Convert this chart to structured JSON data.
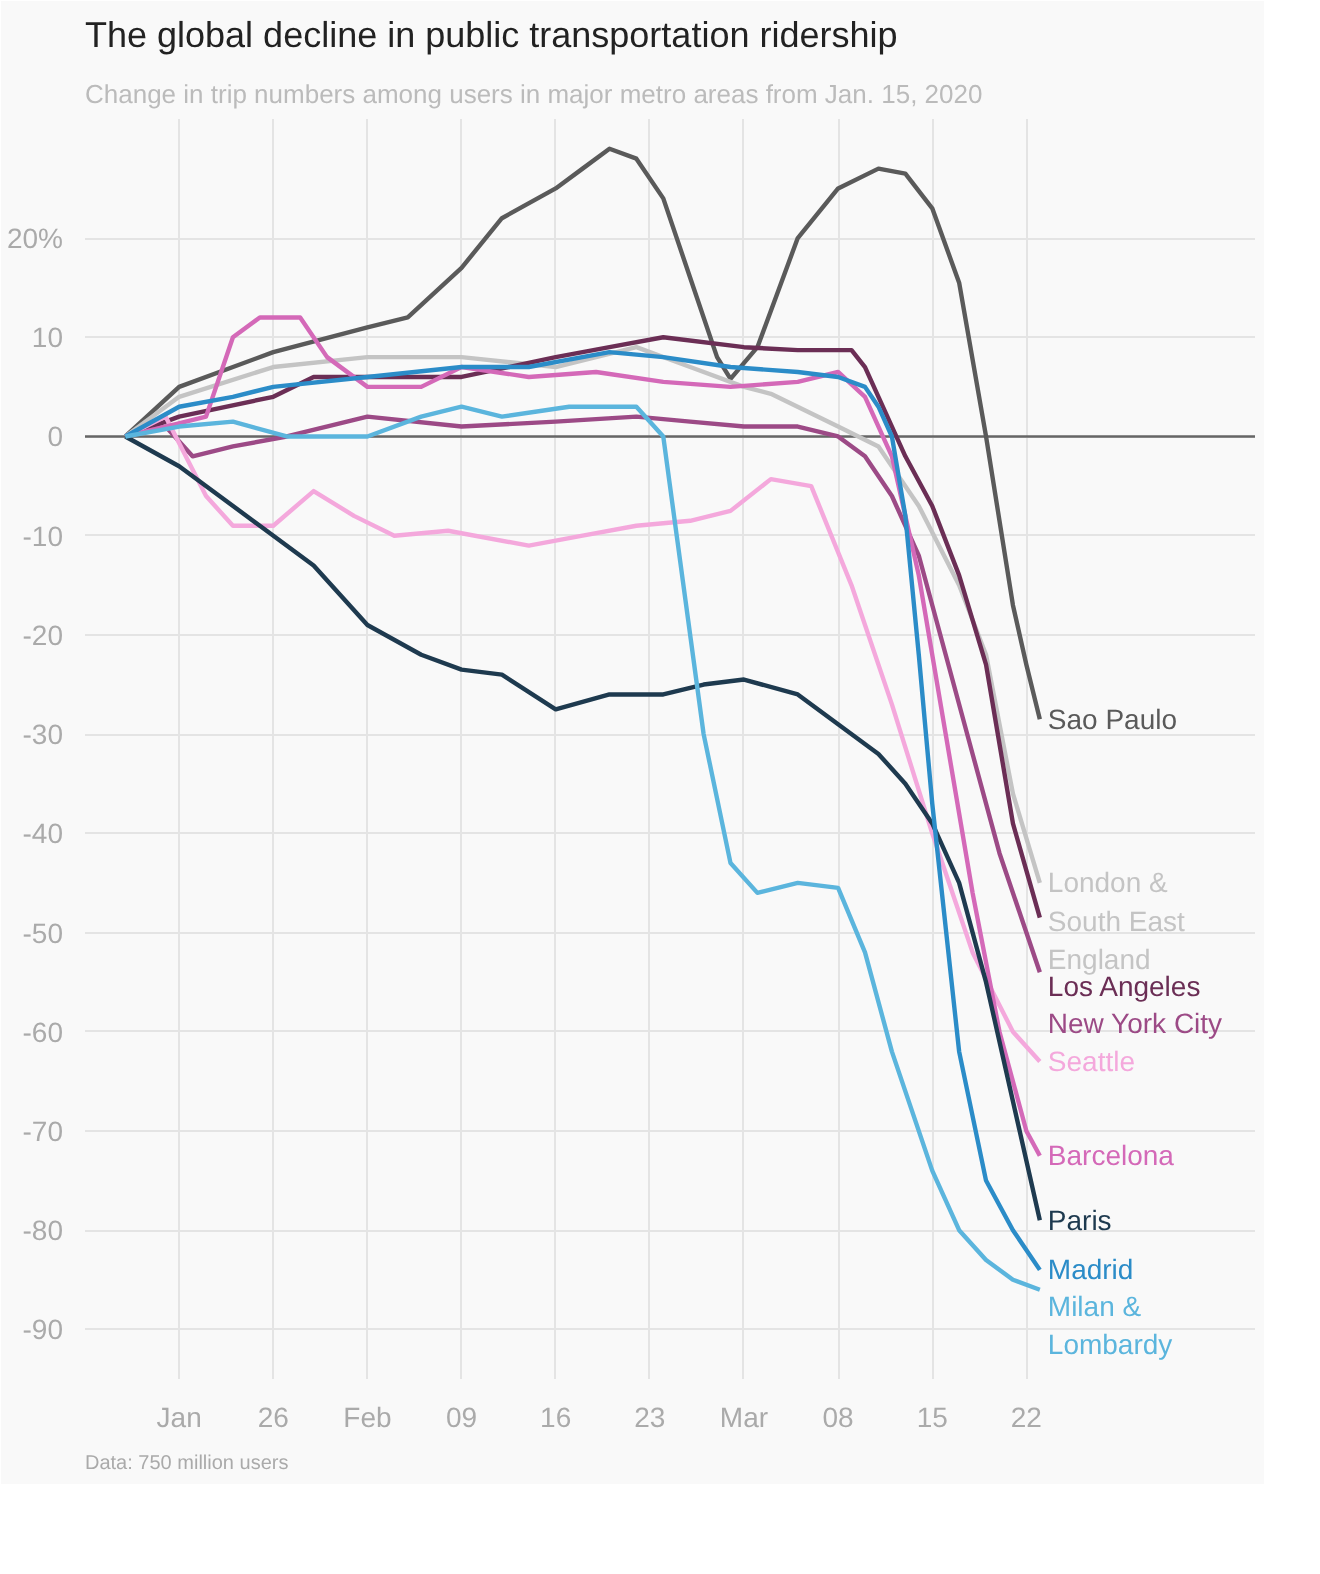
{
  "chart_data": {
    "type": "line",
    "title": "The global decline in public transportation ridership",
    "subtitle": "Change in trip numbers among users in major metro areas from Jan. 15, 2020",
    "annotations": [
      "Data: 750 million users"
    ],
    "xlim": [
      "2020-01-12",
      "2020-04-08"
    ],
    "xticks": [
      {
        "value": "2020-01-19",
        "label": "Jan"
      },
      {
        "value": "2020-01-26",
        "label": "26"
      },
      {
        "value": "2020-02-02",
        "label": "Feb"
      },
      {
        "value": "2020-02-09",
        "label": "09"
      },
      {
        "value": "2020-02-16",
        "label": "16"
      },
      {
        "value": "2020-02-23",
        "label": "23"
      },
      {
        "value": "2020-03-01",
        "label": "Mar"
      },
      {
        "value": "2020-03-08",
        "label": "08"
      },
      {
        "value": "2020-03-15",
        "label": "15"
      },
      {
        "value": "2020-03-22",
        "label": "22"
      }
    ],
    "ylim": [
      -95,
      32
    ],
    "yticks": [
      {
        "value": 20,
        "label": "20%"
      },
      10,
      0,
      -10,
      -20,
      -30,
      -40,
      -50,
      -60,
      -70,
      -80,
      -90
    ],
    "grid": true,
    "marker": "none",
    "line_style": "solid",
    "ref_lines": [
      {
        "axis": "y",
        "value": 0,
        "color": "#666666"
      }
    ],
    "series": [
      {
        "name": "Sao Paulo",
        "color": "#5a5a5a",
        "x": [
          "2020-01-15",
          "2020-01-19",
          "2020-01-26",
          "2020-02-02",
          "2020-02-05",
          "2020-02-09",
          "2020-02-12",
          "2020-02-16",
          "2020-02-18",
          "2020-02-20",
          "2020-02-22",
          "2020-02-24",
          "2020-02-26",
          "2020-02-28",
          "2020-02-29",
          "2020-03-02",
          "2020-03-05",
          "2020-03-08",
          "2020-03-11",
          "2020-03-13",
          "2020-03-15",
          "2020-03-17",
          "2020-03-19",
          "2020-03-21",
          "2020-03-22",
          "2020-03-23"
        ],
        "values": [
          0,
          5,
          8.5,
          11,
          12,
          17,
          22,
          25,
          27,
          29,
          28,
          24,
          16,
          8,
          5.8,
          9,
          20,
          25,
          27,
          26.5,
          23,
          15.5,
          0,
          -17,
          -23,
          -28.5
        ]
      },
      {
        "name": "London & South East England",
        "color": "#c4c4c4",
        "x": [
          "2020-01-15",
          "2020-01-19",
          "2020-01-26",
          "2020-02-02",
          "2020-02-09",
          "2020-02-16",
          "2020-02-22",
          "2020-02-26",
          "2020-03-01",
          "2020-03-03",
          "2020-03-08",
          "2020-03-11",
          "2020-03-14",
          "2020-03-17",
          "2020-03-19",
          "2020-03-21",
          "2020-03-23"
        ],
        "values": [
          0,
          4,
          7,
          8,
          8,
          7,
          9,
          7,
          5,
          4.3,
          1,
          -1,
          -7,
          -15,
          -22,
          -36,
          -45
        ]
      },
      {
        "name": "Los Angeles",
        "color": "#6b2e55",
        "x": [
          "2020-01-15",
          "2020-01-19",
          "2020-01-26",
          "2020-01-29",
          "2020-02-02",
          "2020-02-09",
          "2020-02-16",
          "2020-02-20",
          "2020-02-24",
          "2020-03-01",
          "2020-03-05",
          "2020-03-09",
          "2020-03-10",
          "2020-03-11",
          "2020-03-13",
          "2020-03-15",
          "2020-03-17",
          "2020-03-19",
          "2020-03-21",
          "2020-03-23"
        ],
        "values": [
          0,
          2,
          4,
          6,
          6,
          6,
          8,
          9,
          10,
          9,
          8.7,
          8.7,
          7,
          4,
          -2,
          -7,
          -14,
          -23,
          -39,
          -48.5
        ]
      },
      {
        "name": "New York City",
        "color": "#9c4a86",
        "x": [
          "2020-01-15",
          "2020-01-18",
          "2020-01-20",
          "2020-01-23",
          "2020-01-27",
          "2020-02-02",
          "2020-02-09",
          "2020-02-16",
          "2020-02-22",
          "2020-02-26",
          "2020-03-01",
          "2020-03-05",
          "2020-03-08",
          "2020-03-10",
          "2020-03-12",
          "2020-03-14",
          "2020-03-16",
          "2020-03-18",
          "2020-03-20",
          "2020-03-22",
          "2020-03-23"
        ],
        "values": [
          0,
          1,
          -2,
          -1,
          0,
          2,
          1,
          1.5,
          2,
          1.5,
          1,
          1,
          0,
          -2,
          -6,
          -12,
          -22,
          -32,
          -42,
          -50,
          -54
        ]
      },
      {
        "name": "Seattle",
        "color": "#f4a8dc",
        "x": [
          "2020-01-15",
          "2020-01-18",
          "2020-01-21",
          "2020-01-23",
          "2020-01-26",
          "2020-01-29",
          "2020-02-01",
          "2020-02-04",
          "2020-02-08",
          "2020-02-14",
          "2020-02-18",
          "2020-02-22",
          "2020-02-26",
          "2020-02-29",
          "2020-03-03",
          "2020-03-06",
          "2020-03-09",
          "2020-03-12",
          "2020-03-15",
          "2020-03-18",
          "2020-03-21",
          "2020-03-23"
        ],
        "values": [
          0,
          2,
          -6,
          -9,
          -9,
          -5.5,
          -8,
          -10,
          -9.5,
          -11,
          -10,
          -9,
          -8.5,
          -7.5,
          -4.3,
          -5,
          -15,
          -27,
          -40,
          -52,
          -60,
          -63
        ]
      },
      {
        "name": "Barcelona",
        "color": "#d469b8",
        "x": [
          "2020-01-15",
          "2020-01-18",
          "2020-01-21",
          "2020-01-23",
          "2020-01-25",
          "2020-01-28",
          "2020-01-30",
          "2020-02-02",
          "2020-02-06",
          "2020-02-09",
          "2020-02-14",
          "2020-02-19",
          "2020-02-24",
          "2020-02-29",
          "2020-03-05",
          "2020-03-08",
          "2020-03-10",
          "2020-03-12",
          "2020-03-14",
          "2020-03-16",
          "2020-03-18",
          "2020-03-20",
          "2020-03-22",
          "2020-03-23"
        ],
        "values": [
          0,
          1,
          2,
          10,
          12,
          12,
          8,
          5,
          5,
          7,
          6,
          6.5,
          5.5,
          5,
          5.5,
          6.5,
          4,
          -2,
          -14,
          -30,
          -46,
          -60,
          -70,
          -72.5
        ]
      },
      {
        "name": "Paris",
        "color": "#1e3a4f",
        "x": [
          "2020-01-15",
          "2020-01-19",
          "2020-01-22",
          "2020-01-25",
          "2020-01-29",
          "2020-02-02",
          "2020-02-06",
          "2020-02-09",
          "2020-02-12",
          "2020-02-16",
          "2020-02-20",
          "2020-02-24",
          "2020-02-27",
          "2020-03-01",
          "2020-03-05",
          "2020-03-08",
          "2020-03-11",
          "2020-03-13",
          "2020-03-15",
          "2020-03-17",
          "2020-03-19",
          "2020-03-21",
          "2020-03-23"
        ],
        "values": [
          0,
          -3,
          -6,
          -9,
          -13,
          -19,
          -22,
          -23.5,
          -24,
          -27.5,
          -26,
          -26,
          -25,
          -24.5,
          -26,
          -29,
          -32,
          -35,
          -39,
          -45,
          -55,
          -67,
          -79
        ]
      },
      {
        "name": "Madrid",
        "color": "#2b8cc8",
        "x": [
          "2020-01-15",
          "2020-01-19",
          "2020-01-23",
          "2020-01-26",
          "2020-02-02",
          "2020-02-09",
          "2020-02-14",
          "2020-02-20",
          "2020-02-24",
          "2020-02-29",
          "2020-03-05",
          "2020-03-08",
          "2020-03-10",
          "2020-03-11",
          "2020-03-12",
          "2020-03-13",
          "2020-03-14",
          "2020-03-15",
          "2020-03-17",
          "2020-03-19",
          "2020-03-21",
          "2020-03-23"
        ],
        "values": [
          0,
          3,
          4,
          5,
          6,
          7,
          7,
          8.5,
          8,
          7,
          6.5,
          6,
          5,
          3,
          0,
          -8,
          -22,
          -37,
          -62,
          -75,
          -80,
          -84
        ]
      },
      {
        "name": "Milan & Lombardy",
        "color": "#5bb5dd",
        "x": [
          "2020-01-15",
          "2020-01-19",
          "2020-01-23",
          "2020-01-27",
          "2020-02-02",
          "2020-02-06",
          "2020-02-09",
          "2020-02-12",
          "2020-02-17",
          "2020-02-22",
          "2020-02-24",
          "2020-02-25",
          "2020-02-27",
          "2020-02-29",
          "2020-03-02",
          "2020-03-05",
          "2020-03-08",
          "2020-03-10",
          "2020-03-12",
          "2020-03-15",
          "2020-03-17",
          "2020-03-19",
          "2020-03-21",
          "2020-03-23"
        ],
        "values": [
          0,
          1,
          1.5,
          0,
          0,
          2,
          3,
          2,
          3,
          3,
          0,
          -10,
          -30,
          -43,
          -46,
          -45,
          -45.5,
          -52,
          -62,
          -74,
          -80,
          -83,
          -85,
          -86
        ]
      }
    ]
  }
}
